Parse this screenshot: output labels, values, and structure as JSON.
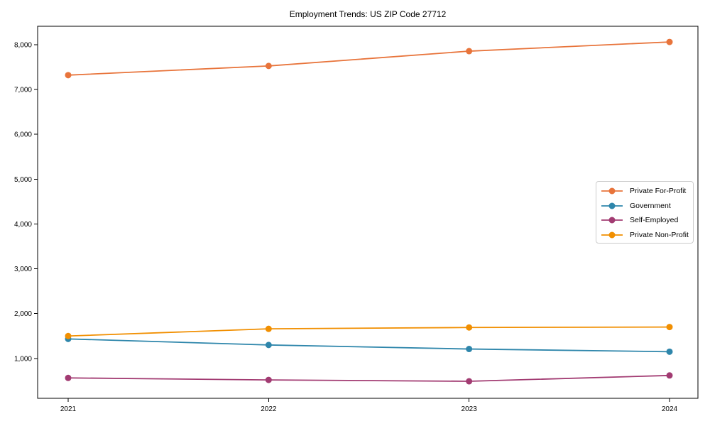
{
  "window": {
    "title": "Employment Trends: US ZIP Code 27712"
  },
  "chart_data": {
    "type": "line",
    "title": "Employment Trends: US ZIP Code 27712",
    "categories": [
      "2021",
      "2022",
      "2023",
      "2024"
    ],
    "series": [
      {
        "name": "Private For-Profit",
        "color": "#E8743B",
        "values": [
          7320,
          7525,
          7855,
          8060
        ]
      },
      {
        "name": "Government",
        "color": "#2E86AB",
        "values": [
          1435,
          1300,
          1210,
          1150
        ]
      },
      {
        "name": "Self-Employed",
        "color": "#A23B72",
        "values": [
          565,
          520,
          490,
          620
        ]
      },
      {
        "name": "Private Non-Profit",
        "color": "#F18F01",
        "values": [
          1500,
          1660,
          1690,
          1700
        ]
      }
    ],
    "xlabel": "",
    "ylabel": "",
    "ylim": [
      110,
      8410
    ],
    "yticks": [
      1000,
      2000,
      3000,
      4000,
      5000,
      6000,
      7000,
      8000
    ],
    "ytick_labels": [
      "1,000",
      "2,000",
      "3,000",
      "4,000",
      "5,000",
      "6,000",
      "7,000",
      "8,000"
    ],
    "grid": false,
    "legend_position": "center-right",
    "marker": "circle",
    "axis_color": "#000000",
    "background_color": "#ffffff"
  }
}
